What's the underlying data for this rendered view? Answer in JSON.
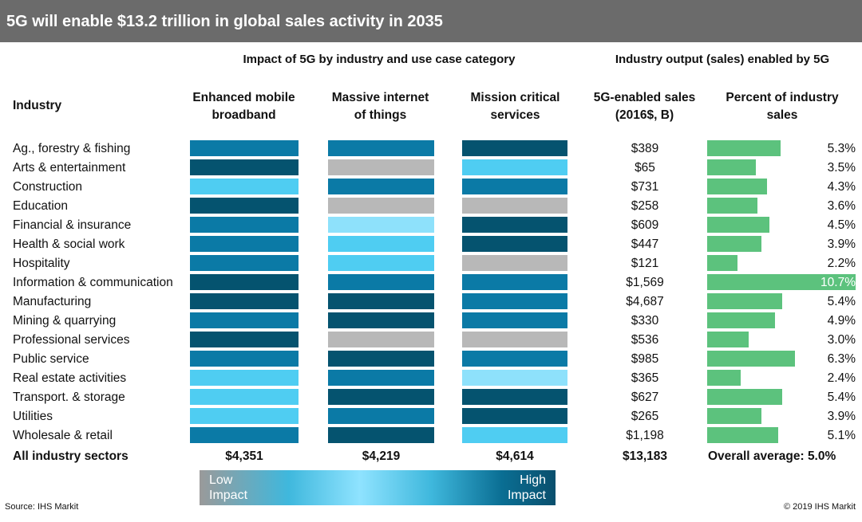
{
  "title": "5G will enable $13.2 trillion in global sales activity in 2035",
  "headers": {
    "impact_group": "Impact of 5G by industry and use case category",
    "output_group": "Industry output (sales) enabled by 5G",
    "industry": "Industry",
    "col_embb": [
      "Enhanced mobile",
      "broadband"
    ],
    "col_miot": [
      "Massive internet",
      "of things"
    ],
    "col_mc": [
      "Mission critical",
      "services"
    ],
    "col_sales": [
      "5G-enabled sales",
      "(2016$, B)"
    ],
    "col_pct": [
      "Percent of industry",
      "sales"
    ]
  },
  "impact_colors": {
    "1": "#b8b8b8",
    "2": "#8ee1fb",
    "3": "#4fcdf2",
    "4": "#0b7aa6",
    "5": "#05536f"
  },
  "chart_data": {
    "type": "table",
    "impact_scale_note": "impact levels on a 1 (Low Impact) to 5 (High Impact) color scale",
    "rows": [
      {
        "industry": "Ag., forestry & fishing",
        "embb": 4,
        "miot": 4,
        "mc": 5,
        "sales": "$389",
        "pct_label": "5.3%",
        "pct": 5.3
      },
      {
        "industry": "Arts & entertainment",
        "embb": 5,
        "miot": 1,
        "mc": 3,
        "sales": "$65",
        "pct_label": "3.5%",
        "pct": 3.5
      },
      {
        "industry": "Construction",
        "embb": 3,
        "miot": 4,
        "mc": 4,
        "sales": "$731",
        "pct_label": "4.3%",
        "pct": 4.3
      },
      {
        "industry": "Education",
        "embb": 5,
        "miot": 1,
        "mc": 1,
        "sales": "$258",
        "pct_label": "3.6%",
        "pct": 3.6
      },
      {
        "industry": "Financial & insurance",
        "embb": 4,
        "miot": 2,
        "mc": 5,
        "sales": "$609",
        "pct_label": "4.5%",
        "pct": 4.5
      },
      {
        "industry": "Health & social work",
        "embb": 4,
        "miot": 3,
        "mc": 5,
        "sales": "$447",
        "pct_label": "3.9%",
        "pct": 3.9
      },
      {
        "industry": "Hospitality",
        "embb": 4,
        "miot": 3,
        "mc": 1,
        "sales": "$121",
        "pct_label": "2.2%",
        "pct": 2.2
      },
      {
        "industry": "Information & communication",
        "embb": 5,
        "miot": 4,
        "mc": 4,
        "sales": "$1,569",
        "pct_label": "10.7%",
        "pct": 10.7
      },
      {
        "industry": "Manufacturing",
        "embb": 5,
        "miot": 5,
        "mc": 4,
        "sales": "$4,687",
        "pct_label": "5.4%",
        "pct": 5.4
      },
      {
        "industry": "Mining & quarrying",
        "embb": 4,
        "miot": 5,
        "mc": 4,
        "sales": "$330",
        "pct_label": "4.9%",
        "pct": 4.9
      },
      {
        "industry": "Professional services",
        "embb": 5,
        "miot": 1,
        "mc": 1,
        "sales": "$536",
        "pct_label": "3.0%",
        "pct": 3.0
      },
      {
        "industry": "Public service",
        "embb": 4,
        "miot": 5,
        "mc": 4,
        "sales": "$985",
        "pct_label": "6.3%",
        "pct": 6.3
      },
      {
        "industry": "Real estate activities",
        "embb": 3,
        "miot": 4,
        "mc": 2,
        "sales": "$365",
        "pct_label": "2.4%",
        "pct": 2.4
      },
      {
        "industry": "Transport. & storage",
        "embb": 3,
        "miot": 5,
        "mc": 5,
        "sales": "$627",
        "pct_label": "5.4%",
        "pct": 5.4
      },
      {
        "industry": "Utilities",
        "embb": 3,
        "miot": 4,
        "mc": 5,
        "sales": "$265",
        "pct_label": "3.9%",
        "pct": 3.9
      },
      {
        "industry": "Wholesale & retail",
        "embb": 4,
        "miot": 5,
        "mc": 3,
        "sales": "$1,198",
        "pct_label": "5.1%",
        "pct": 5.1
      }
    ],
    "totals": {
      "label": "All industry sectors",
      "embb": "$4,351",
      "miot": "$4,219",
      "mc": "$4,614",
      "sales": "$13,183",
      "pct": "Overall average: 5.0%"
    },
    "pct_xlim": [
      0,
      10.7
    ]
  },
  "legend": {
    "low": [
      "Low",
      "Impact"
    ],
    "high": [
      "High",
      "Impact"
    ]
  },
  "footer": {
    "source": "Source: IHS Markit",
    "copyright": "© 2019 IHS Markit"
  }
}
